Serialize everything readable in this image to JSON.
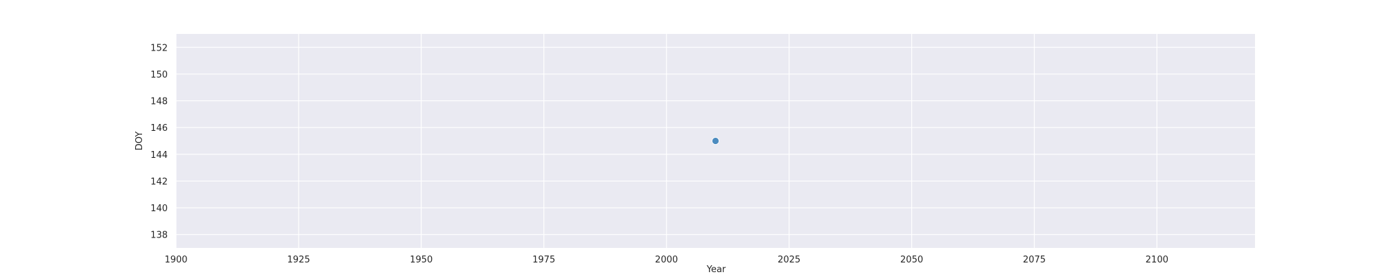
{
  "chart_data": {
    "type": "scatter",
    "title": "",
    "xlabel": "Year",
    "ylabel": "DOY",
    "xlim": [
      1900,
      2120
    ],
    "ylim": [
      137,
      153
    ],
    "xticks": [
      1900,
      1925,
      1950,
      1975,
      2000,
      2025,
      2050,
      2075,
      2100
    ],
    "yticks": [
      138,
      140,
      142,
      144,
      146,
      148,
      150,
      152
    ],
    "grid": true,
    "series": [
      {
        "points": [
          {
            "x": 2010,
            "y": 145
          }
        ],
        "color": "#4c8bbf"
      }
    ],
    "background_color": "#eaeaf2",
    "grid_color": "#ffffff"
  }
}
